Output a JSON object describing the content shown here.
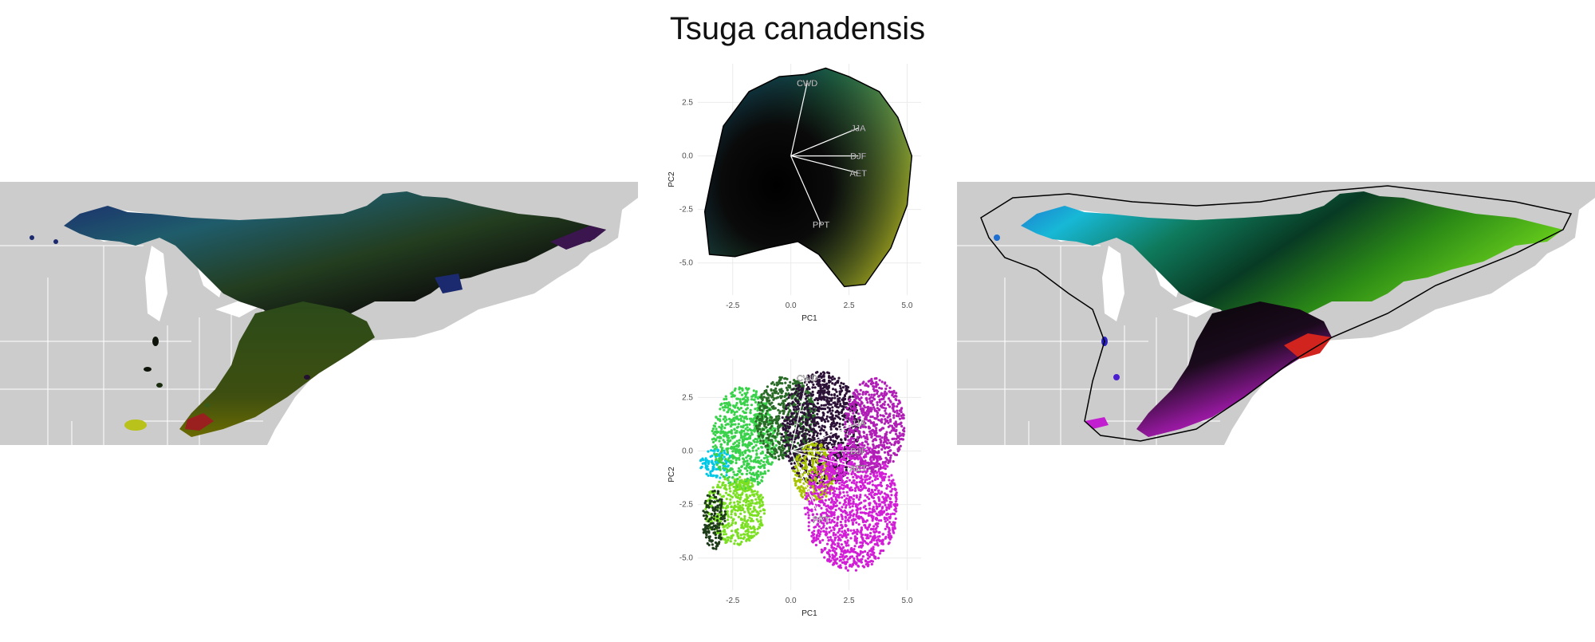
{
  "title": "Tsuga canadensis",
  "colors": {
    "land": "#cccccc",
    "borders": "#ffffff",
    "grid": "#ebebeb",
    "hull": "#000000",
    "vector": "#ffffff"
  },
  "pca": {
    "xlabel": "PC1",
    "ylabel": "PC2",
    "xticks": [
      "-2.5",
      "0.0",
      "2.5",
      "5.0"
    ],
    "yticks": [
      "2.5",
      "0.0",
      "-2.5",
      "-5.0"
    ],
    "xlim": [
      -4,
      5.6
    ],
    "ylim": [
      -6.5,
      4.3
    ],
    "vectors": [
      {
        "label": "CWD",
        "x": 0.7,
        "y": 3.4
      },
      {
        "label": "JJA",
        "x": 2.9,
        "y": 1.3
      },
      {
        "label": "DJF",
        "x": 2.9,
        "y": 0.0
      },
      {
        "label": "AET",
        "x": 2.9,
        "y": -0.8
      },
      {
        "label": "PPT",
        "x": 1.3,
        "y": -3.2
      }
    ]
  },
  "chart_data": [
    {
      "type": "scatter",
      "panel": "top",
      "xlabel": "PC1",
      "ylabel": "PC2",
      "xlim": [
        -4,
        5.6
      ],
      "ylim": [
        -6.5,
        4.3
      ],
      "hull": [
        [
          0.6,
          3.8
        ],
        [
          1.5,
          4.1
        ],
        [
          2.5,
          3.7
        ],
        [
          3.8,
          3.0
        ],
        [
          4.6,
          1.8
        ],
        [
          5.2,
          0.0
        ],
        [
          5.0,
          -2.3
        ],
        [
          4.3,
          -4.3
        ],
        [
          3.2,
          -6.0
        ],
        [
          2.3,
          -6.1
        ],
        [
          1.2,
          -4.6
        ],
        [
          0.3,
          -4.0
        ],
        [
          -1.0,
          -4.3
        ],
        [
          -2.4,
          -4.7
        ],
        [
          -3.5,
          -4.6
        ],
        [
          -3.7,
          -2.6
        ],
        [
          -3.4,
          -1.0
        ],
        [
          -2.9,
          1.4
        ],
        [
          -1.8,
          3.0
        ],
        [
          -0.5,
          3.7
        ]
      ],
      "vectors": [
        "CWD",
        "JJA",
        "DJF",
        "AET",
        "PPT"
      ]
    },
    {
      "type": "scatter",
      "panel": "bottom",
      "xlabel": "PC1",
      "ylabel": "PC2",
      "xlim": [
        -4,
        5.6
      ],
      "ylim": [
        -6.5,
        4.3
      ],
      "clusters": [
        {
          "color": "#00c8e6",
          "cx": -3.2,
          "cy": -0.6,
          "rx": 0.7,
          "ry": 0.7
        },
        {
          "color": "#39d24a",
          "cx": -2.0,
          "cy": 0.6,
          "rx": 1.4,
          "ry": 2.4
        },
        {
          "color": "#2a6b28",
          "cx": -0.2,
          "cy": 1.5,
          "rx": 1.3,
          "ry": 2.0
        },
        {
          "color": "#7be022",
          "cx": -2.4,
          "cy": -2.8,
          "rx": 1.3,
          "ry": 1.6
        },
        {
          "color": "#1e3c1a",
          "cx": -3.3,
          "cy": -3.2,
          "rx": 0.5,
          "ry": 1.4
        },
        {
          "color": "#2c1237",
          "cx": 1.3,
          "cy": 1.0,
          "rx": 1.7,
          "ry": 2.7
        },
        {
          "color": "#a8c400",
          "cx": 1.0,
          "cy": -1.0,
          "rx": 0.9,
          "ry": 1.4
        },
        {
          "color": "#d21ed7",
          "cx": 2.6,
          "cy": -2.6,
          "rx": 2.0,
          "ry": 3.0
        },
        {
          "color": "#b01fb6",
          "cx": 3.6,
          "cy": 1.2,
          "rx": 1.3,
          "ry": 2.2
        }
      ],
      "vectors": [
        "CWD",
        "JJA",
        "DJF",
        "AET",
        "PPT"
      ]
    }
  ]
}
